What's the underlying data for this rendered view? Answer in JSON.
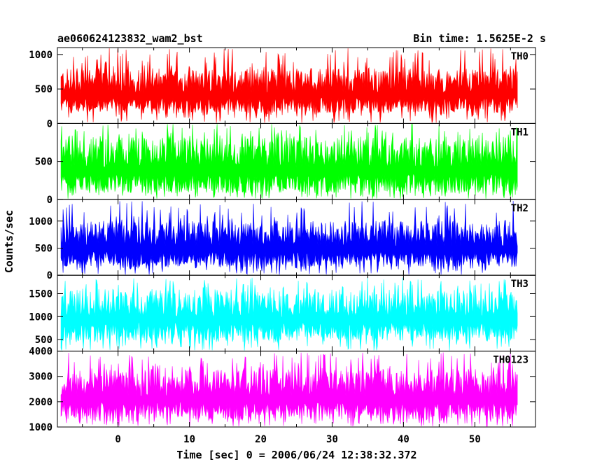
{
  "header": {
    "left": "ae060624123832_wam2_bst",
    "right": "Bin time: 1.5625E-2 s"
  },
  "chart_data": {
    "type": "line",
    "xlabel": "Time [sec] 0 = 2006/06/24 12:38:32.372",
    "ylabel": "Counts/sec",
    "xlim": [
      -8.5,
      58.5
    ],
    "x_ticks": [
      0,
      10,
      20,
      30,
      40,
      50
    ],
    "data_x_range": [
      -8.0,
      56.0
    ],
    "bin_time_s": 0.015625,
    "series": [
      {
        "name": "TH0",
        "color": "#ff0000",
        "ylim": [
          0,
          1100
        ],
        "y_ticks": [
          0,
          500,
          1000
        ],
        "typical_range": [
          150,
          800
        ],
        "approx_max": 1100
      },
      {
        "name": "TH1",
        "color": "#00ff00",
        "ylim": [
          0,
          1000
        ],
        "y_ticks": [
          0,
          500
        ],
        "typical_range": [
          80,
          830
        ],
        "approx_max": 1000
      },
      {
        "name": "TH2",
        "color": "#0000ff",
        "ylim": [
          0,
          1400
        ],
        "y_ticks": [
          0,
          500,
          1000
        ],
        "typical_range": [
          150,
          1000
        ],
        "approx_max": 1380
      },
      {
        "name": "TH3",
        "color": "#00ffff",
        "ylim": [
          250,
          1900
        ],
        "y_ticks": [
          500,
          1000,
          1500
        ],
        "typical_range": [
          480,
          1600
        ],
        "approx_max": 1850
      },
      {
        "name": "TH0123",
        "color": "#ff00ff",
        "ylim": [
          1000,
          4000
        ],
        "y_ticks": [
          1000,
          2000,
          3000,
          4000
        ],
        "typical_range": [
          1300,
          3300
        ],
        "approx_max": 3950
      }
    ]
  }
}
